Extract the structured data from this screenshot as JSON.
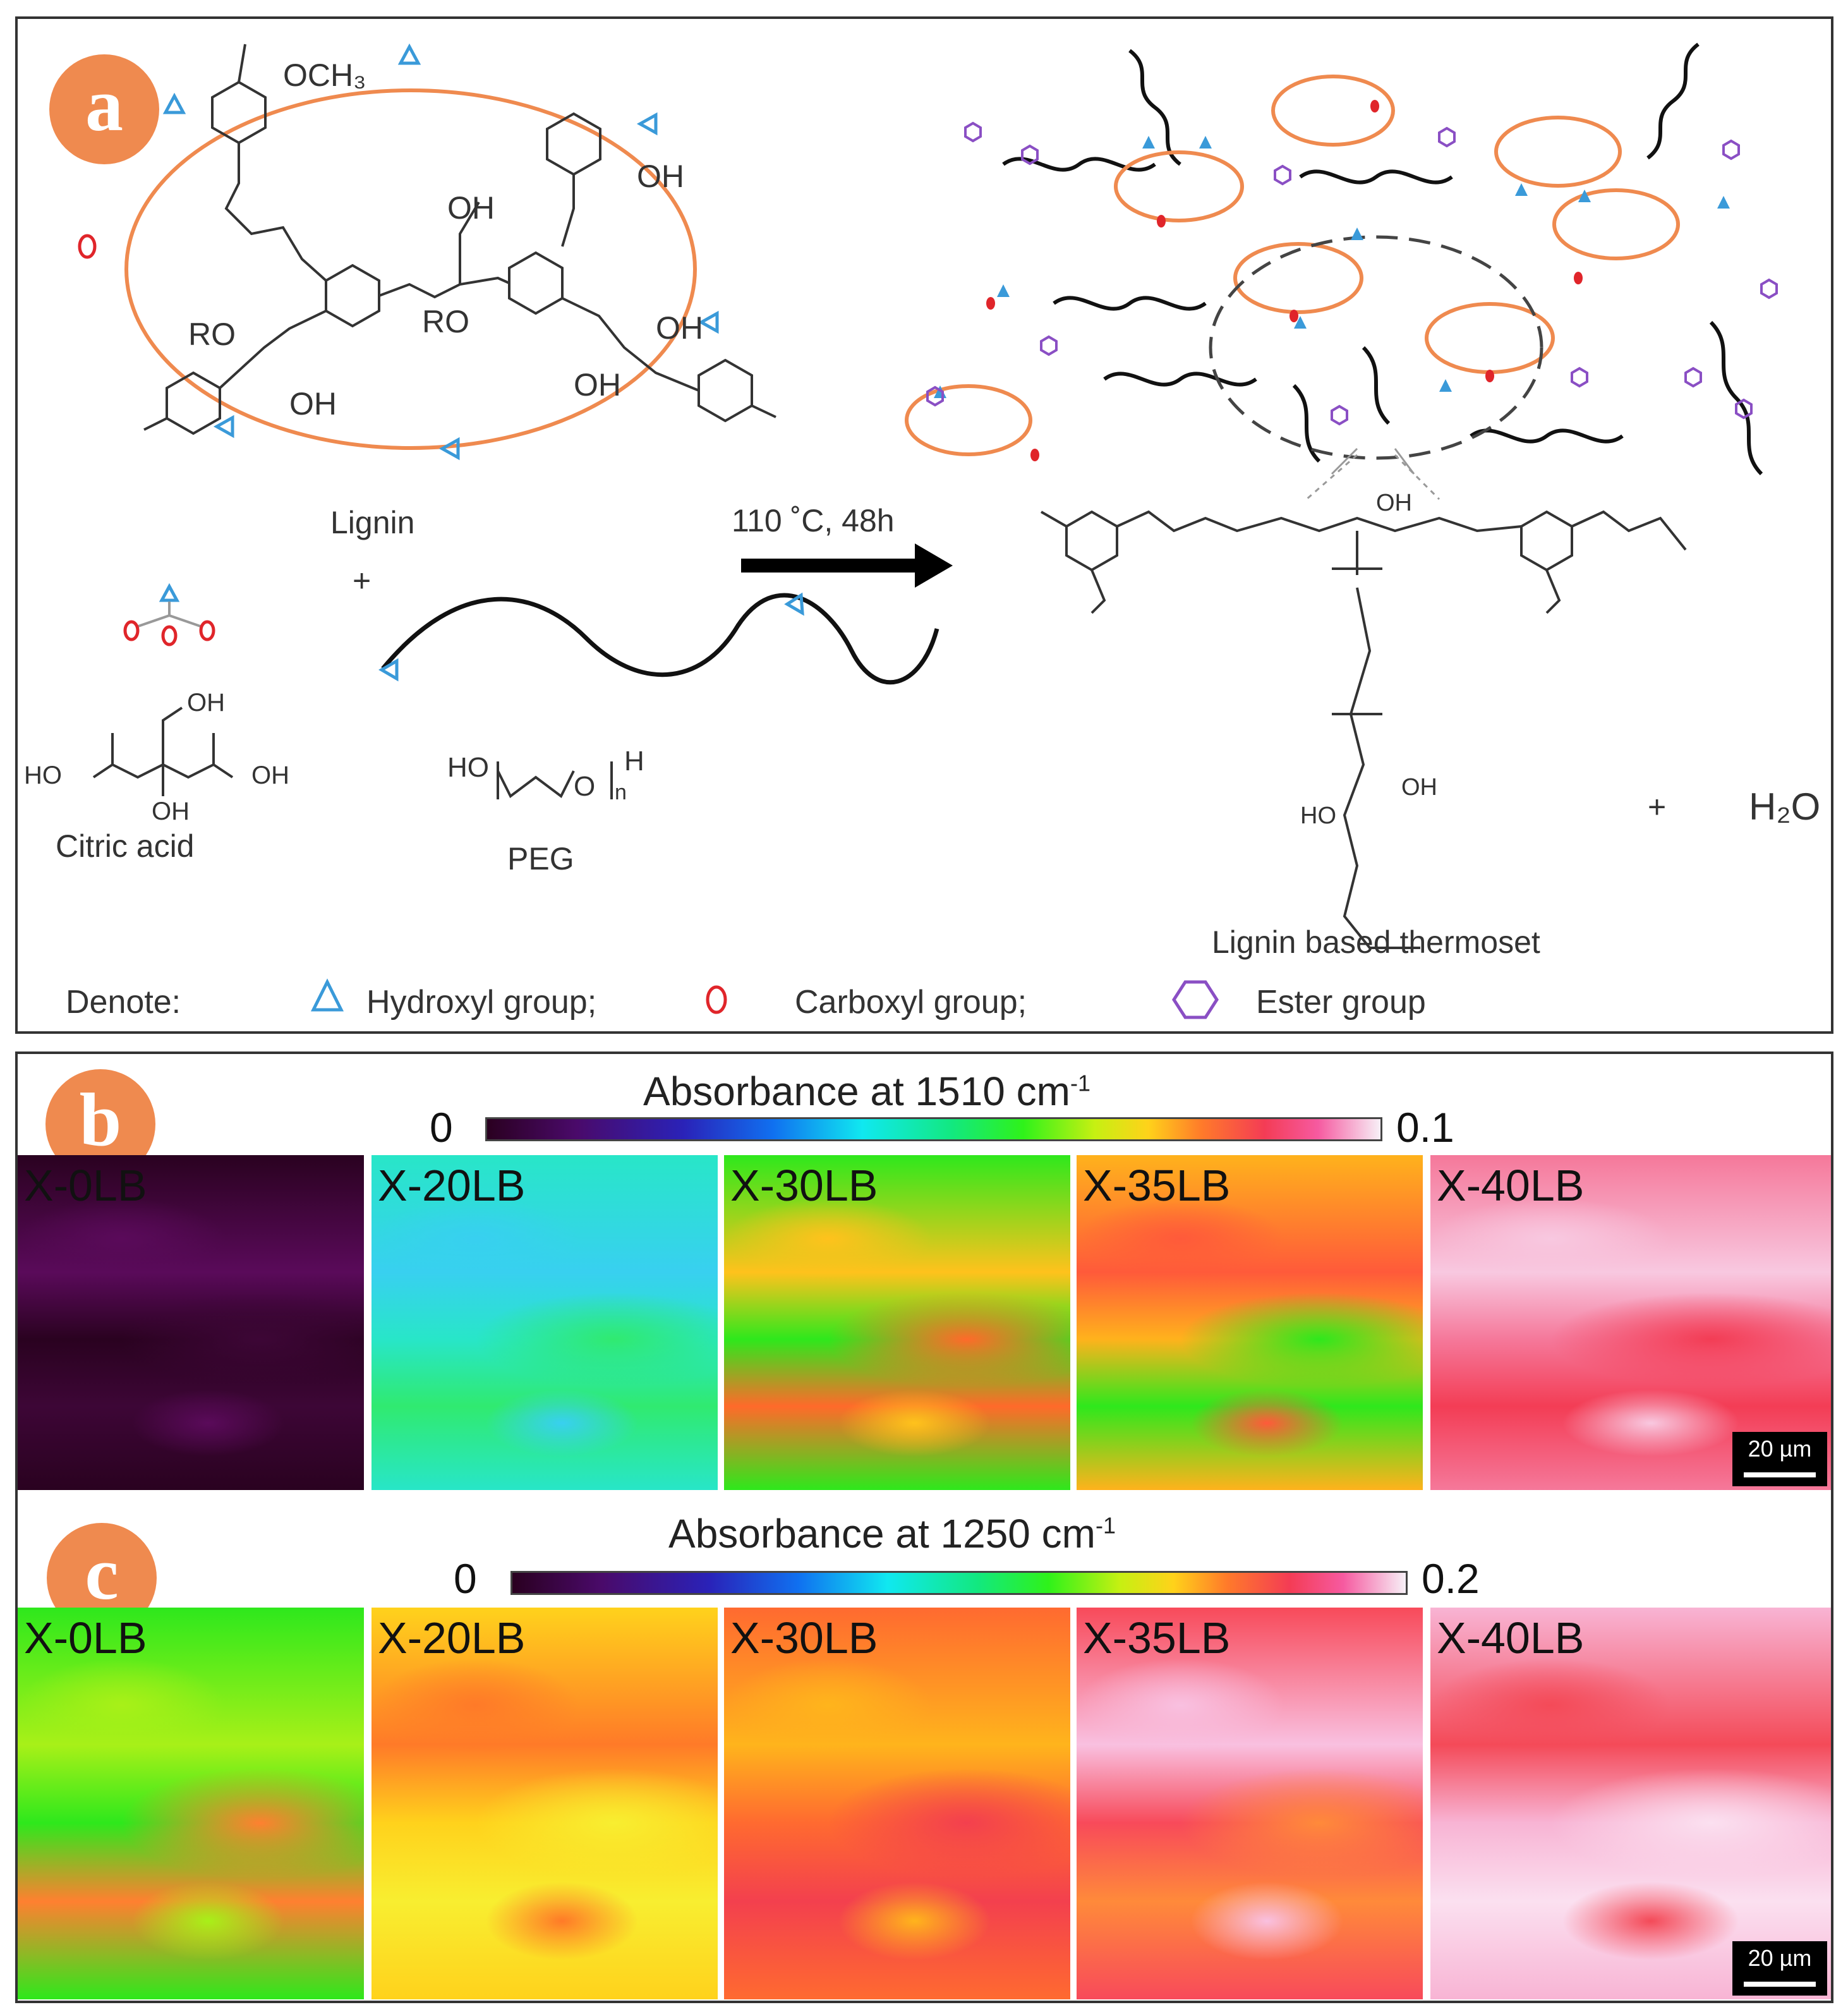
{
  "panel_a": {
    "badge": "a",
    "reagents": {
      "lignin": "Lignin",
      "plus": "+",
      "citric_acid": "Citric acid",
      "peg": "PEG"
    },
    "reaction_condition": "110 ˚C, 48h",
    "product": "Lignin based thermoset",
    "byproduct_plus": "+",
    "byproduct": "H₂O",
    "structure_text": {
      "och3": "OCH₃",
      "oh": "OH",
      "ro": "RO",
      "o": "O",
      "ho": "HO",
      "h": "H",
      "n": "n"
    },
    "legend": {
      "title": "Denote:",
      "hydroxyl": "Hydroxyl group;",
      "carboxyl": "Carboxyl group;",
      "ester": "Ester group"
    },
    "colors": {
      "lignin_ring": "#ef8a4f",
      "hydroxyl": "#3a9ad9",
      "carboxyl": "#e0252a",
      "ester": "#8a4fc4"
    }
  },
  "panel_b": {
    "badge": "b",
    "title": "Absorbance at 1510 cm",
    "title_sup": "-1",
    "scale_min": "0",
    "scale_max": "0.1",
    "scale_bar": "20 µm",
    "tiles": [
      {
        "label": "X-0LB",
        "base": "#2a0220",
        "spot": "#5a0a5a",
        "spot2": "#3d0636"
      },
      {
        "label": "X-20LB",
        "base": "#28e6c8",
        "spot": "#38d0f0",
        "spot2": "#30ea70"
      },
      {
        "label": "X-30LB",
        "base": "#2ee81c",
        "spot": "#ffc21c",
        "spot2": "#ff6a2a"
      },
      {
        "label": "X-35LB",
        "base": "#ffb21c",
        "spot": "#ff5a3a",
        "spot2": "#2ee81c"
      },
      {
        "label": "X-40LB",
        "base": "#f5789a",
        "spot": "#f8c8e0",
        "spot2": "#f33d55"
      }
    ]
  },
  "panel_c": {
    "badge": "c",
    "title": "Absorbance at 1250 cm",
    "title_sup": "-1",
    "scale_min": "0",
    "scale_max": "0.2",
    "scale_bar": "20 µm",
    "tiles": [
      {
        "label": "X-0LB",
        "base": "#2ee81c",
        "spot": "#a8f018",
        "spot2": "#ff8030"
      },
      {
        "label": "X-20LB",
        "base": "#ffd21c",
        "spot": "#ff7a28",
        "spot2": "#f8ee30"
      },
      {
        "label": "X-30LB",
        "base": "#ff6a30",
        "spot": "#ffb41c",
        "spot2": "#f3404e"
      },
      {
        "label": "X-35LB",
        "base": "#f84a5a",
        "spot": "#f9c0e0",
        "spot2": "#ff8a3a"
      },
      {
        "label": "X-40LB",
        "base": "#f8b4d4",
        "spot": "#f44a58",
        "spot2": "#fbe0f0"
      }
    ]
  }
}
